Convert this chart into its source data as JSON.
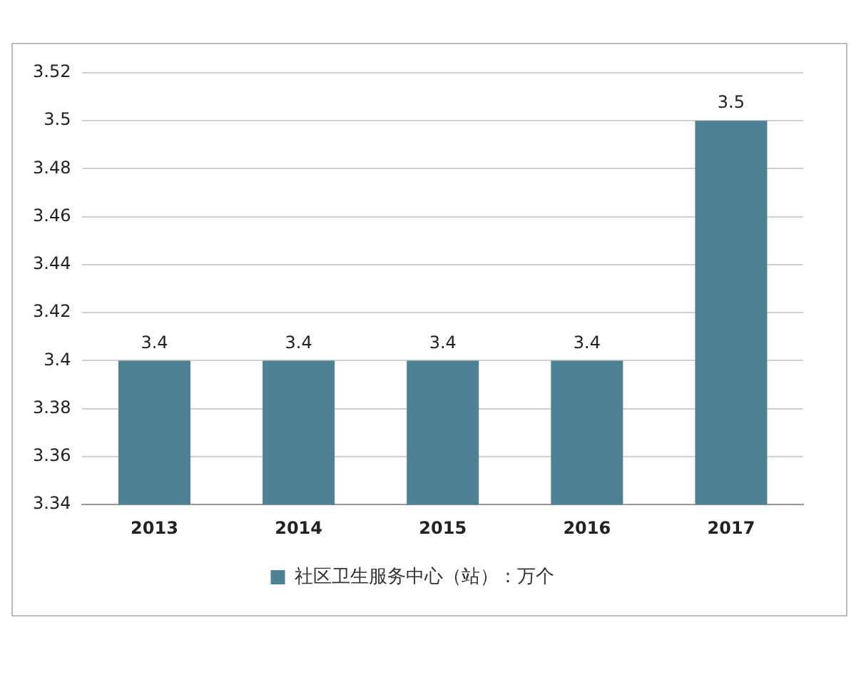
{
  "chart_data": {
    "type": "bar",
    "categories": [
      "2013",
      "2014",
      "2015",
      "2016",
      "2017"
    ],
    "series": [
      {
        "name": "社区卫生服务中心（站）：万个",
        "color": "#4f8196",
        "values": [
          3.4,
          3.4,
          3.4,
          3.4,
          3.5
        ]
      }
    ],
    "ylim": [
      3.34,
      3.52
    ],
    "yticks": [
      3.34,
      3.36,
      3.38,
      3.4,
      3.42,
      3.44,
      3.46,
      3.48,
      3.5,
      3.52
    ],
    "grid": "y",
    "legend": "bottom",
    "data_labels": true
  }
}
